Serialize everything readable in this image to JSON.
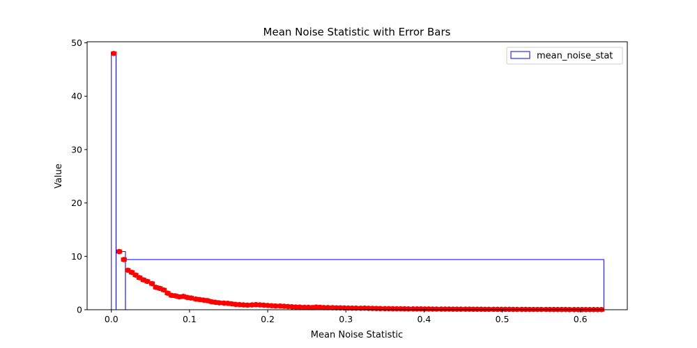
{
  "chart_data": {
    "type": "bar",
    "title": "Mean Noise Statistic with Error Bars",
    "xlabel": "Mean Noise Statistic",
    "ylabel": "Value",
    "xlim": [
      -0.031,
      0.66
    ],
    "ylim": [
      0,
      50.2
    ],
    "xticks": [
      0.0,
      0.1,
      0.2,
      0.3,
      0.4,
      0.5,
      0.6
    ],
    "xtick_labels": [
      "0.0",
      "0.1",
      "0.2",
      "0.3",
      "0.4",
      "0.5",
      "0.6"
    ],
    "yticks": [
      0,
      10,
      20,
      30,
      40,
      50
    ],
    "ytick_labels": [
      "0",
      "10",
      "20",
      "30",
      "40",
      "50"
    ],
    "grid": false,
    "legend": {
      "placement": "top-right",
      "entries": [
        "mean_noise_stat"
      ]
    },
    "histogram": {
      "bin_edges": [
        0.0,
        0.006,
        0.018,
        0.63
      ],
      "values": [
        48.0,
        10.9,
        9.4
      ],
      "edge_color": "#0000ff",
      "fill": "none"
    },
    "series": [
      {
        "name": "mean_noise_stat",
        "color": "#ff0000",
        "x": [
          0.003,
          0.01,
          0.016,
          0.021,
          0.026,
          0.031,
          0.036,
          0.041,
          0.046,
          0.052,
          0.057,
          0.062,
          0.067,
          0.072,
          0.077,
          0.082,
          0.087,
          0.092,
          0.097,
          0.102,
          0.108,
          0.113,
          0.118,
          0.123,
          0.128,
          0.133,
          0.138,
          0.144,
          0.149,
          0.154,
          0.159,
          0.164,
          0.169,
          0.174,
          0.18,
          0.185,
          0.19,
          0.195,
          0.2,
          0.205,
          0.21,
          0.216,
          0.221,
          0.226,
          0.231,
          0.236,
          0.241,
          0.247,
          0.252,
          0.257,
          0.262,
          0.267,
          0.272,
          0.277,
          0.283,
          0.288,
          0.293,
          0.298,
          0.303,
          0.308,
          0.313,
          0.319,
          0.324,
          0.329,
          0.334,
          0.339,
          0.344,
          0.35,
          0.355,
          0.36,
          0.365,
          0.37,
          0.375,
          0.38,
          0.386,
          0.391,
          0.396,
          0.401,
          0.406,
          0.411,
          0.416,
          0.422,
          0.427,
          0.432,
          0.437,
          0.442,
          0.447,
          0.453,
          0.458,
          0.463,
          0.468,
          0.473,
          0.478,
          0.483,
          0.489,
          0.494,
          0.499,
          0.504,
          0.509,
          0.514,
          0.519,
          0.525,
          0.53,
          0.535,
          0.54,
          0.545,
          0.55,
          0.556,
          0.561,
          0.566,
          0.571,
          0.576,
          0.581,
          0.586,
          0.592,
          0.597,
          0.602,
          0.607,
          0.612,
          0.617,
          0.622,
          0.627
        ],
        "y": [
          48.0,
          10.9,
          9.4,
          7.4,
          7.0,
          6.5,
          6.0,
          5.6,
          5.3,
          4.9,
          4.2,
          4.0,
          3.7,
          3.1,
          2.7,
          2.6,
          2.4,
          2.5,
          2.3,
          2.2,
          2.0,
          1.9,
          1.8,
          1.7,
          1.5,
          1.4,
          1.3,
          1.25,
          1.2,
          1.1,
          1.0,
          0.95,
          0.9,
          0.85,
          0.9,
          0.95,
          0.9,
          0.85,
          0.8,
          0.75,
          0.7,
          0.7,
          0.65,
          0.6,
          0.55,
          0.5,
          0.5,
          0.45,
          0.45,
          0.4,
          0.5,
          0.45,
          0.4,
          0.4,
          0.38,
          0.36,
          0.35,
          0.33,
          0.32,
          0.3,
          0.3,
          0.28,
          0.3,
          0.27,
          0.25,
          0.24,
          0.22,
          0.2,
          0.2,
          0.19,
          0.18,
          0.18,
          0.17,
          0.16,
          0.16,
          0.15,
          0.15,
          0.14,
          0.14,
          0.13,
          0.13,
          0.12,
          0.12,
          0.12,
          0.11,
          0.11,
          0.1,
          0.1,
          0.1,
          0.09,
          0.09,
          0.09,
          0.08,
          0.08,
          0.08,
          0.07,
          0.07,
          0.07,
          0.07,
          0.06,
          0.06,
          0.06,
          0.06,
          0.05,
          0.05,
          0.05,
          0.05,
          0.05,
          0.04,
          0.04,
          0.04,
          0.04,
          0.04,
          0.03,
          0.03,
          0.03,
          0.03,
          0.03,
          0.02,
          0.02,
          0.02,
          0.02
        ],
        "xerr": 0.003
      }
    ]
  }
}
